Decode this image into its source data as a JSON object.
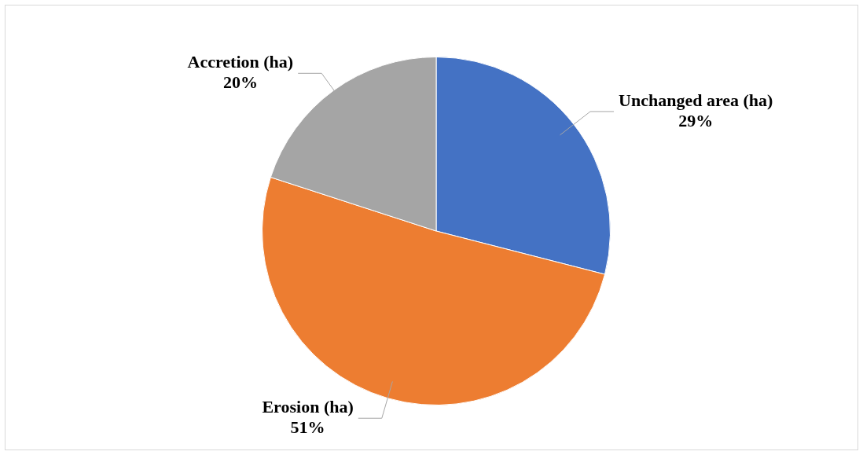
{
  "chart_data": {
    "type": "pie",
    "categories": [
      "Unchanged area (ha)",
      "Erosion (ha)",
      "Accretion (ha)"
    ],
    "values": [
      29,
      51,
      20
    ],
    "colors": [
      "#4472c4",
      "#ed7d31",
      "#a5a5a5"
    ],
    "value_labels": [
      "29%",
      "51%",
      "20%"
    ],
    "legend": false
  }
}
